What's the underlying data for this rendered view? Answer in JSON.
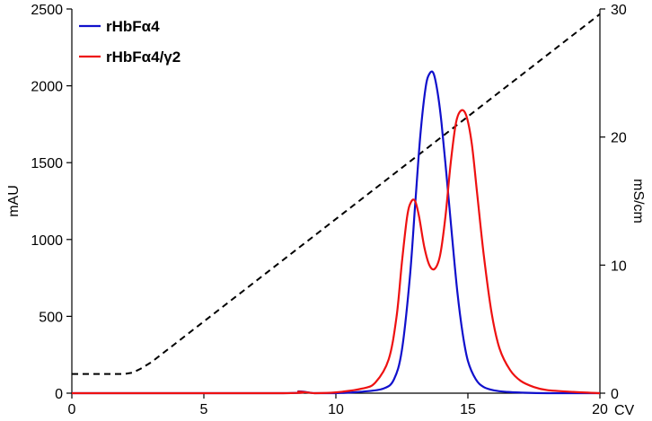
{
  "chart_data": {
    "type": "line",
    "xlabel": "CV",
    "ylabel": "mAU",
    "y2label": "mS/cm",
    "xlim": [
      0,
      20
    ],
    "ylim": [
      0,
      2500
    ],
    "y2lim": [
      0,
      30
    ],
    "xticks": [
      "0",
      "5",
      "10",
      "15",
      "20"
    ],
    "yticks": [
      "0",
      "500",
      "1000",
      "1500",
      "2000",
      "2500"
    ],
    "y2ticks": [
      "0",
      "10",
      "20",
      "30"
    ],
    "grid": false,
    "legend_position": "top-left",
    "series": [
      {
        "name": "rHbFα4",
        "color": "#1010cc",
        "axis": "left",
        "x": [
          0,
          8.0,
          8.6,
          9.2,
          10,
          11,
          11.8,
          12.2,
          12.5,
          12.8,
          13.0,
          13.2,
          13.4,
          13.55,
          13.7,
          13.85,
          14.0,
          14.2,
          14.4,
          14.6,
          14.8,
          15.0,
          15.3,
          15.6,
          16.0,
          16.5,
          17.0,
          18.0,
          20
        ],
        "y": [
          0,
          0,
          12,
          0,
          0,
          10,
          30,
          90,
          280,
          750,
          1220,
          1680,
          1990,
          2080,
          2080,
          1960,
          1760,
          1400,
          1020,
          660,
          390,
          210,
          90,
          40,
          18,
          8,
          4,
          0,
          0
        ]
      },
      {
        "name": "rHbFα4/γ2",
        "color": "#ee1111",
        "axis": "left",
        "x": [
          0,
          8.0,
          8.6,
          9.2,
          10,
          11,
          11.5,
          12.0,
          12.3,
          12.5,
          12.7,
          12.85,
          13.0,
          13.15,
          13.35,
          13.55,
          13.75,
          13.95,
          14.15,
          14.35,
          14.55,
          14.75,
          14.95,
          15.15,
          15.35,
          15.6,
          15.9,
          16.2,
          16.6,
          17.0,
          17.5,
          18.0,
          19.0,
          20
        ],
        "y": [
          0,
          0,
          10,
          0,
          5,
          30,
          70,
          220,
          500,
          850,
          1150,
          1245,
          1250,
          1150,
          950,
          830,
          810,
          900,
          1150,
          1500,
          1760,
          1840,
          1800,
          1620,
          1300,
          900,
          520,
          290,
          150,
          80,
          40,
          20,
          8,
          0
        ]
      },
      {
        "name": "",
        "color": "#000000",
        "axis": "right",
        "dashed": true,
        "x": [
          0,
          2.0,
          2.3,
          2.6,
          3.0,
          20
        ],
        "y": [
          1.5,
          1.5,
          1.6,
          1.9,
          2.4,
          29.6
        ]
      }
    ]
  }
}
